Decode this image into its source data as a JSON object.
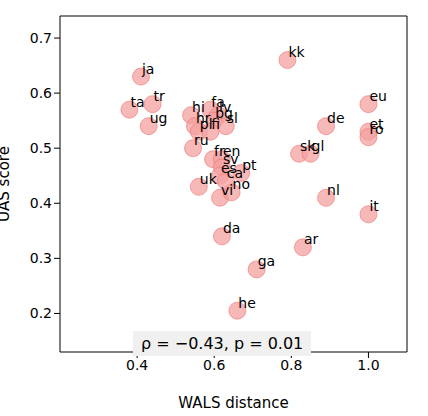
{
  "chart_data": {
    "type": "scatter",
    "x_label": "WALS distance",
    "y_label": "UAS score",
    "annotation": "ρ = −0.43, p = 0.01",
    "color": "#f4a0a0",
    "marker": "circle",
    "xlim": [
      0.2,
      1.1
    ],
    "xticks": [
      0.4,
      0.6,
      0.8,
      {
        "value": 1,
        "label": "1.0"
      }
    ],
    "ylim": [
      0.13,
      0.74
    ],
    "yticks": [
      0.2,
      0.3,
      0.4,
      0.5,
      0.6,
      0.7
    ],
    "grid": false,
    "labels": [
      "ja",
      "tr",
      "ta",
      "ug",
      "hi",
      "fa",
      "lv",
      "hr",
      "pl",
      "bg",
      "sl",
      "fi",
      "ru",
      "kk",
      "eu",
      "de",
      "et",
      "ro",
      "sk",
      "gl",
      "nl",
      "it",
      "ar",
      "ga",
      "he",
      "da",
      "vi",
      "no",
      "uk",
      "fr",
      "en",
      "sv",
      "es",
      "ca",
      "pt"
    ],
    "x": [
      0.41,
      0.44,
      0.38,
      0.43,
      0.54,
      0.59,
      0.61,
      0.55,
      0.56,
      0.6,
      0.63,
      0.59,
      0.545,
      0.79,
      1.0,
      0.89,
      1.0,
      1.0,
      0.82,
      0.85,
      0.89,
      1.0,
      0.83,
      0.71,
      0.66,
      0.62,
      0.615,
      0.645,
      0.56,
      0.597,
      0.62,
      0.62,
      0.615,
      0.63,
      0.67
    ],
    "y": [
      0.63,
      0.58,
      0.57,
      0.54,
      0.56,
      0.57,
      0.56,
      0.54,
      0.53,
      0.55,
      0.54,
      0.53,
      0.5,
      0.66,
      0.58,
      0.54,
      0.53,
      0.52,
      0.49,
      0.49,
      0.41,
      0.38,
      0.32,
      0.28,
      0.205,
      0.34,
      0.41,
      0.42,
      0.43,
      0.48,
      0.48,
      0.465,
      0.45,
      0.44,
      0.455
    ]
  }
}
